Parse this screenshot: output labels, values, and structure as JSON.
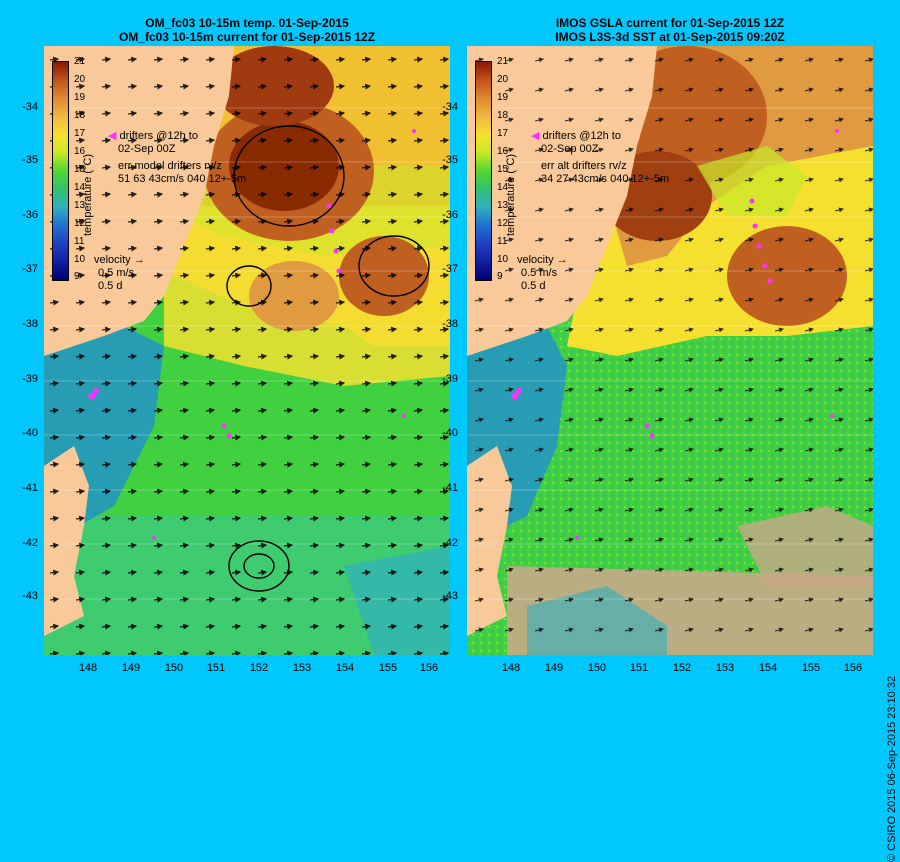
{
  "left": {
    "title_line1": "OM_fc03 10-15m temp. 01-Sep-2015",
    "title_line2": "OM_fc03 10-15m current for 01-Sep-2015 12Z",
    "legend_drifters": "drifters @12h to",
    "legend_date": "02-Sep 00Z",
    "legend_err": "err model drifters rv/z",
    "legend_errvals": "51 63 43cm/s 040 12+-5m"
  },
  "right": {
    "title_line1": "IMOS GSLA current for 01-Sep-2015 12Z",
    "title_line2": "IMOS L3S-3d SST at 01-Sep-2015 09:20Z",
    "legend_drifters": "drifters @12h to",
    "legend_date": "02-Sep 00Z",
    "legend_err": "err alt drifters rv/z",
    "legend_errvals": "34 27 43cm/s 040 12+-5m"
  },
  "colorbar": {
    "title": "temperature (°C)",
    "ticks": [
      "21",
      "20",
      "19",
      "18",
      "17",
      "16",
      "15",
      "14",
      "13",
      "12",
      "11",
      "10",
      "9"
    ],
    "colors": [
      "#8a1a00",
      "#c0521a",
      "#e08a30",
      "#f0b840",
      "#f5e030",
      "#c8e828",
      "#50d830",
      "#30c070",
      "#30b0c0",
      "#2070d0",
      "#2040c0",
      "#1020a0",
      "#000070"
    ]
  },
  "velocity_legend": {
    "label": "velocity",
    "speed": "0.5 m/s",
    "duration": "0.5 d"
  },
  "axes": {
    "y_labels": [
      "-34",
      "-35",
      "-36",
      "-37",
      "-38",
      "-39",
      "-40",
      "-41",
      "-42",
      "-43"
    ],
    "x_labels": [
      "148",
      "149",
      "150",
      "151",
      "152",
      "153",
      "154",
      "155",
      "156"
    ]
  },
  "copyright": "© CSIRO 2015   06-Sep-2015 23:10:32",
  "colors": {
    "background": "#00c8ff",
    "land": "#f9c99a",
    "drifter": "#ff30ff"
  }
}
